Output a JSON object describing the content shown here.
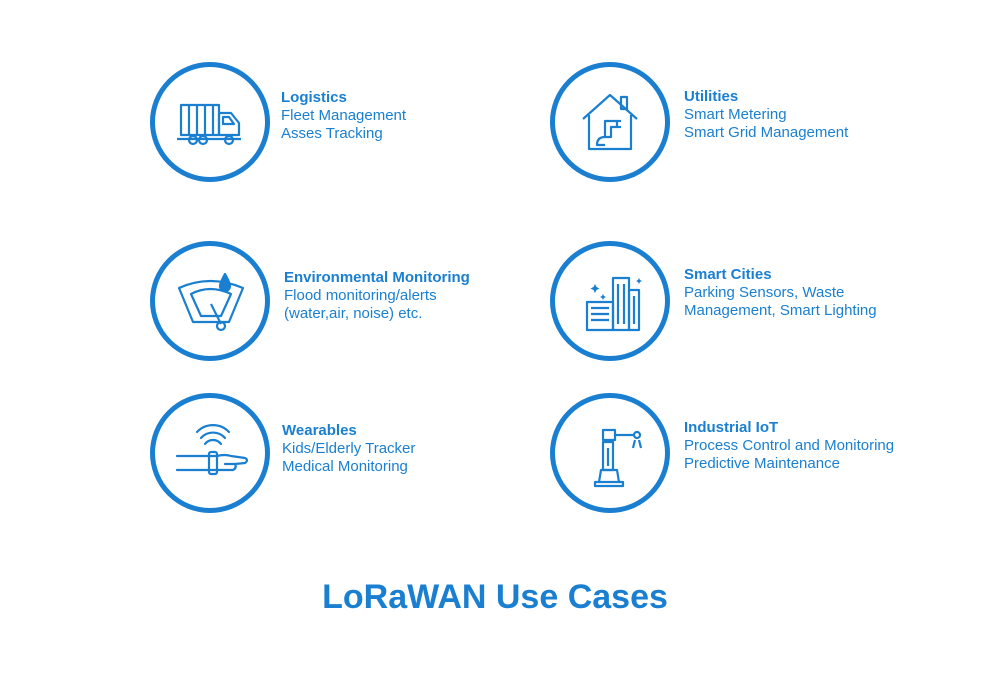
{
  "caption": "LoRaWAN Use Cases",
  "use_cases": [
    {
      "title": "Logistics",
      "lines": [
        "Fleet Management",
        "Asses Tracking"
      ],
      "icon": "truck-icon"
    },
    {
      "title": "Utilities",
      "lines": [
        "Smart Metering",
        "Smart Grid Management"
      ],
      "icon": "house-pipe-icon"
    },
    {
      "title": "Environmental Monitoring",
      "lines": [
        "Flood monitoring/alerts",
        "(water,air, noise) etc."
      ],
      "icon": "gauge-drop-icon"
    },
    {
      "title": "Smart Cities",
      "lines": [
        "Parking Sensors, Waste",
        "Management, Smart Lighting"
      ],
      "icon": "city-buildings-icon"
    },
    {
      "title": "Wearables",
      "lines": [
        "Kids/Elderly Tracker",
        "Medical Monitoring"
      ],
      "icon": "wrist-tracker-icon"
    },
    {
      "title": "Industrial IoT",
      "lines": [
        "Process Control and Monitoring",
        "Predictive Maintenance"
      ],
      "icon": "robot-arm-icon"
    }
  ],
  "colors": {
    "accent": "#1a7fd0"
  }
}
